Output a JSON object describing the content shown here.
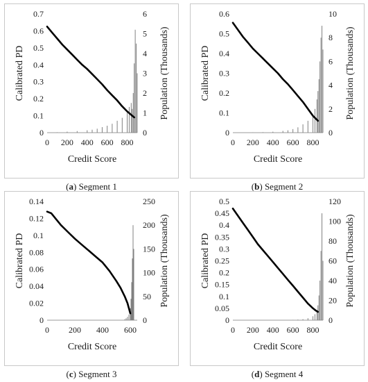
{
  "chart_data": [
    {
      "type": "line",
      "caption_letter": "a",
      "caption_text": "Segment 1",
      "xlabel": "Credit Score",
      "ylabel": "Calibrated PD",
      "y2label": "Population (Thousands)",
      "xlim": [
        0,
        900
      ],
      "ylim": [
        0,
        0.7
      ],
      "y2lim": [
        0,
        6
      ],
      "x_ticks": [
        "0",
        "200",
        "400",
        "600",
        "800"
      ],
      "y_ticks": [
        "0",
        "0.1",
        "0.2",
        "0.3",
        "0.4",
        "0.5",
        "0.6",
        "0.7"
      ],
      "y2_ticks": [
        "0",
        "1",
        "2",
        "3",
        "4",
        "5",
        "6"
      ],
      "grid": false,
      "line_color": "#000000",
      "bar_color": "#808080",
      "series": [
        {
          "kind": "line",
          "axis": "left",
          "x": [
            0,
            50,
            100,
            150,
            200,
            250,
            300,
            350,
            400,
            450,
            500,
            550,
            600,
            650,
            700,
            750,
            800,
            830,
            850,
            870
          ],
          "y": [
            0.625,
            0.59,
            0.555,
            0.52,
            0.49,
            0.46,
            0.43,
            0.4,
            0.375,
            0.345,
            0.315,
            0.285,
            0.25,
            0.22,
            0.19,
            0.155,
            0.125,
            0.11,
            0.1,
            0.09
          ]
        },
        {
          "kind": "bar",
          "axis": "right",
          "x": [
            100,
            200,
            300,
            400,
            450,
            500,
            550,
            600,
            650,
            700,
            750,
            800,
            820,
            840,
            850,
            860,
            870,
            880,
            890,
            900
          ],
          "y": [
            0.02,
            0.05,
            0.08,
            0.12,
            0.15,
            0.2,
            0.28,
            0.35,
            0.45,
            0.6,
            0.75,
            1.0,
            1.3,
            1.5,
            1.2,
            2.0,
            3.5,
            5.2,
            4.5,
            3.0
          ]
        }
      ]
    },
    {
      "type": "line",
      "caption_letter": "b",
      "caption_text": "Segment 2",
      "xlabel": "Credit Score",
      "ylabel": "Calibrated PD",
      "y2label": "Population (Thousands)",
      "xlim": [
        0,
        900
      ],
      "ylim": [
        0,
        0.6
      ],
      "y2lim": [
        0,
        10
      ],
      "x_ticks": [
        "0",
        "200",
        "400",
        "600",
        "800"
      ],
      "y_ticks": [
        "0",
        "0.1",
        "0.2",
        "0.3",
        "0.4",
        "0.5",
        "0.6"
      ],
      "y2_ticks": [
        "0",
        "2",
        "4",
        "6",
        "8",
        "10"
      ],
      "grid": false,
      "line_color": "#000000",
      "bar_color": "#808080",
      "series": [
        {
          "kind": "line",
          "axis": "left",
          "x": [
            0,
            50,
            100,
            150,
            200,
            250,
            300,
            350,
            400,
            450,
            500,
            550,
            600,
            650,
            700,
            750,
            800,
            830,
            850
          ],
          "y": [
            0.555,
            0.52,
            0.485,
            0.455,
            0.425,
            0.4,
            0.375,
            0.35,
            0.325,
            0.3,
            0.27,
            0.245,
            0.215,
            0.185,
            0.155,
            0.12,
            0.085,
            0.07,
            0.06
          ]
        },
        {
          "kind": "bar",
          "axis": "right",
          "x": [
            200,
            300,
            400,
            500,
            550,
            600,
            650,
            700,
            750,
            800,
            820,
            840,
            850,
            860,
            870,
            880,
            890,
            900
          ],
          "y": [
            0.02,
            0.04,
            0.08,
            0.15,
            0.2,
            0.3,
            0.45,
            0.7,
            1.0,
            1.5,
            2.0,
            2.8,
            3.5,
            4.5,
            6.0,
            8.0,
            9.0,
            7.0
          ]
        }
      ]
    },
    {
      "type": "line",
      "caption_letter": "c",
      "caption_text": "Segment 3",
      "xlabel": "Credit Score",
      "ylabel": "Calibrated PD",
      "y2label": "Population (Thousands)",
      "xlim": [
        0,
        650
      ],
      "ylim": [
        0,
        0.14
      ],
      "y2lim": [
        0,
        250
      ],
      "x_ticks": [
        "0",
        "200",
        "400",
        "600"
      ],
      "y_ticks": [
        "0",
        "0.02",
        "0.04",
        "0.06",
        "0.08",
        "0.1",
        "0.12",
        "0.14"
      ],
      "y2_ticks": [
        "0",
        "50",
        "100",
        "150",
        "200",
        "250"
      ],
      "grid": false,
      "line_color": "#000000",
      "bar_color": "#808080",
      "series": [
        {
          "kind": "line",
          "axis": "left",
          "x": [
            0,
            30,
            60,
            100,
            150,
            200,
            250,
            300,
            350,
            400,
            450,
            500,
            530,
            560,
            580,
            600
          ],
          "y": [
            0.128,
            0.126,
            0.12,
            0.112,
            0.104,
            0.096,
            0.089,
            0.082,
            0.075,
            0.068,
            0.058,
            0.046,
            0.038,
            0.028,
            0.02,
            0.008
          ]
        },
        {
          "kind": "bar",
          "axis": "right",
          "x": [
            560,
            570,
            580,
            590,
            600,
            605,
            610,
            615,
            620,
            625
          ],
          "y": [
            2,
            4,
            7,
            12,
            25,
            45,
            80,
            130,
            200,
            150
          ]
        }
      ]
    },
    {
      "type": "line",
      "caption_letter": "d",
      "caption_text": "Segment 4",
      "xlabel": "Credit Score",
      "ylabel": "Calibrated PD",
      "y2label": "Population (Thousands)",
      "xlim": [
        0,
        900
      ],
      "ylim": [
        0,
        0.5
      ],
      "y2lim": [
        0,
        120
      ],
      "x_ticks": [
        "0",
        "200",
        "400",
        "600",
        "800"
      ],
      "y_ticks": [
        "0",
        "0.05",
        "0.1",
        "0.15",
        "0.2",
        "0.25",
        "0.3",
        "0.35",
        "0.4",
        "0.45",
        "0.5"
      ],
      "y2_ticks": [
        "0",
        "20",
        "40",
        "60",
        "80",
        "100",
        "120"
      ],
      "grid": false,
      "line_color": "#000000",
      "bar_color": "#808080",
      "series": [
        {
          "kind": "line",
          "axis": "left",
          "x": [
            0,
            50,
            100,
            150,
            200,
            250,
            300,
            350,
            400,
            450,
            500,
            550,
            600,
            650,
            700,
            750,
            800,
            830,
            850
          ],
          "y": [
            0.47,
            0.44,
            0.41,
            0.38,
            0.35,
            0.32,
            0.295,
            0.27,
            0.245,
            0.22,
            0.195,
            0.17,
            0.145,
            0.12,
            0.095,
            0.07,
            0.05,
            0.04,
            0.035
          ]
        },
        {
          "kind": "bar",
          "axis": "right",
          "x": [
            600,
            650,
            700,
            750,
            800,
            820,
            840,
            850,
            860,
            870,
            880,
            890,
            900
          ],
          "y": [
            0.3,
            0.6,
            1,
            2,
            4,
            6,
            10,
            15,
            25,
            40,
            70,
            108,
            60
          ]
        }
      ]
    }
  ]
}
